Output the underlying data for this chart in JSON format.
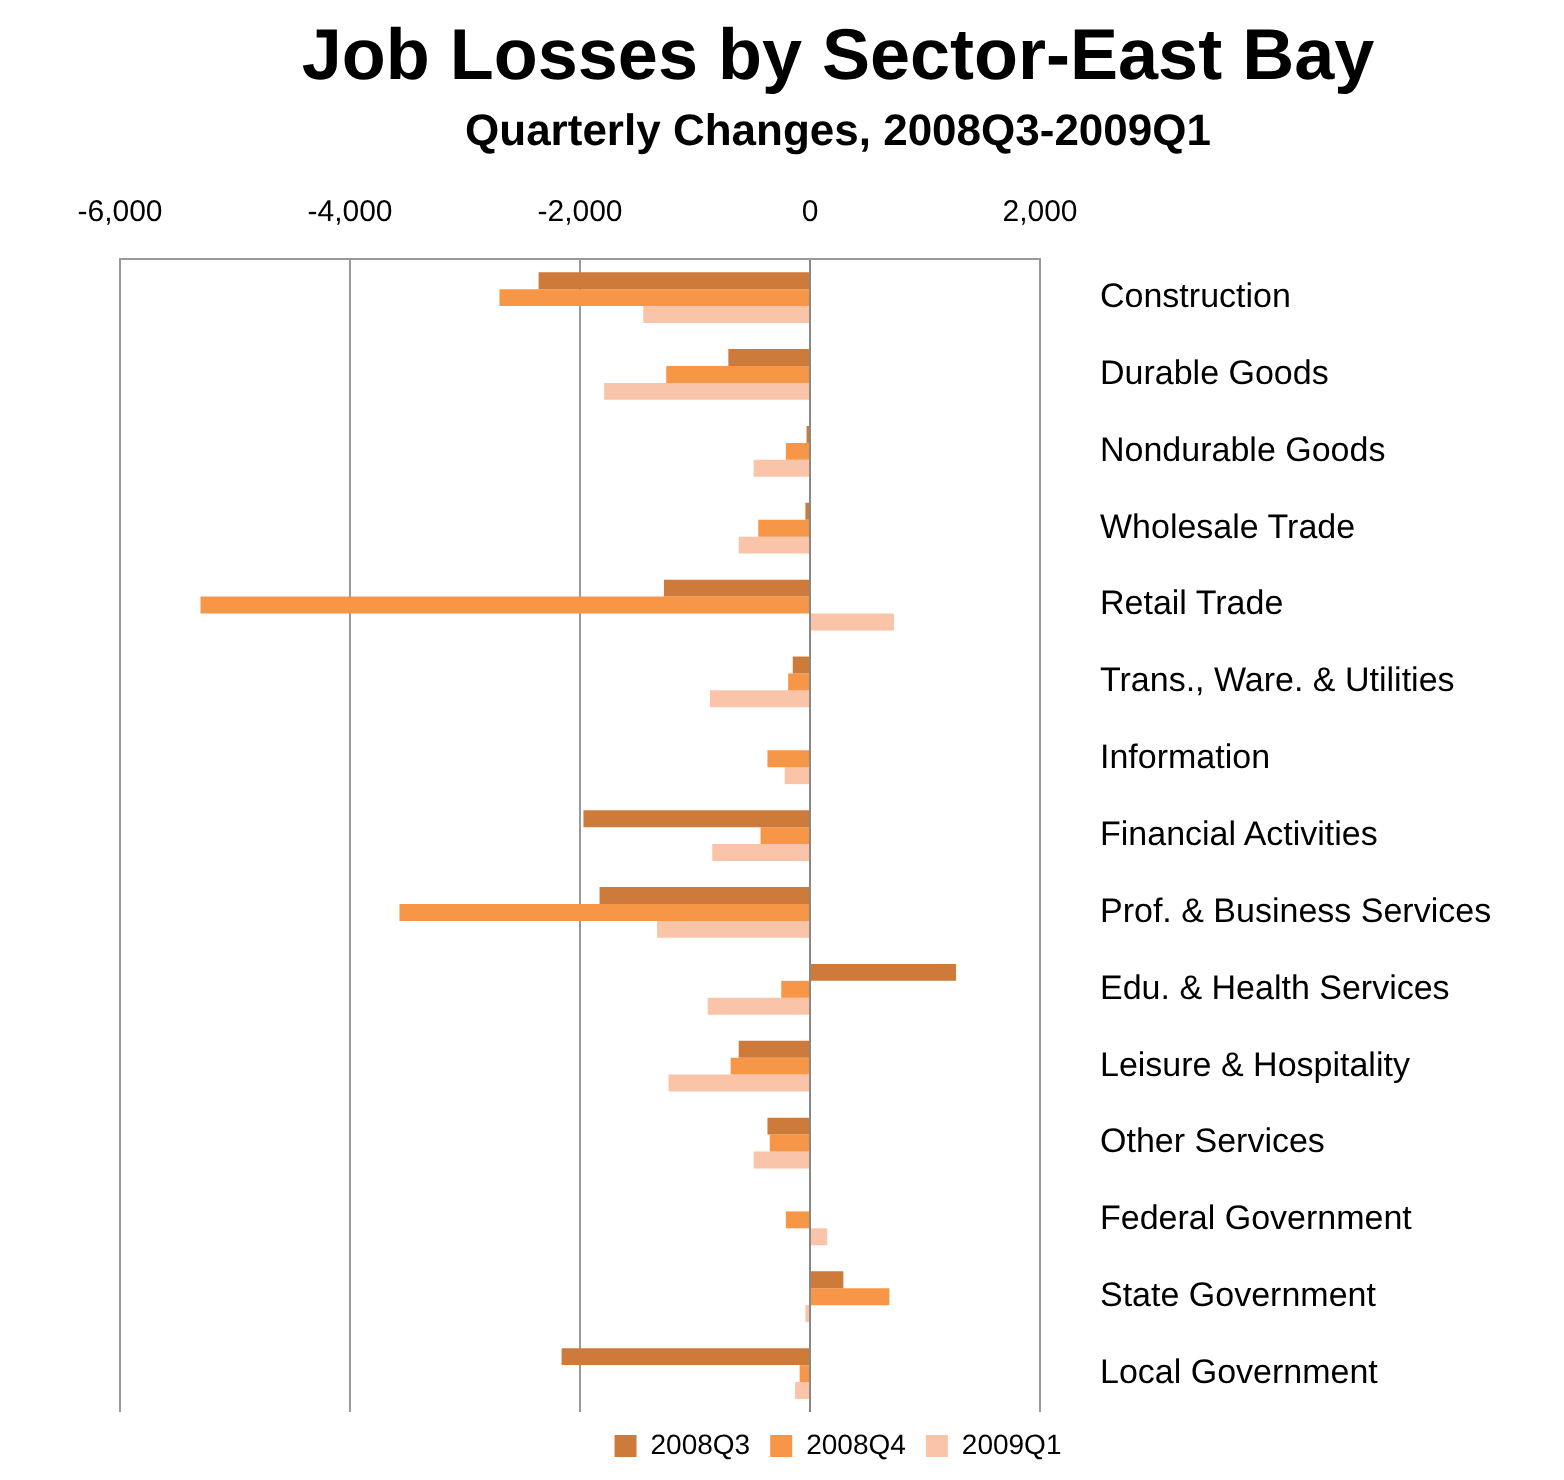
{
  "chart_data": {
    "type": "bar",
    "orientation": "horizontal",
    "title": "Job Losses by Sector-East Bay",
    "subtitle": "Quarterly Changes, 2008Q3-2009Q1",
    "categories": [
      "Construction",
      "Durable Goods",
      "Nondurable Goods",
      "Wholesale Trade",
      "Retail Trade",
      "Trans., Ware. & Utilities",
      "Information",
      "Financial Activities",
      "Prof. & Business Services",
      "Edu. & Health Services",
      "Leisure & Hospitality",
      "Other Services",
      "Federal Government",
      "State Government",
      "Local Government"
    ],
    "series": [
      {
        "name": "2008Q3",
        "color": "#cd7a3a",
        "values": [
          -2360,
          -710,
          -30,
          -40,
          -1270,
          -150,
          0,
          -1970,
          -1830,
          1270,
          -620,
          -370,
          0,
          290,
          -2160
        ]
      },
      {
        "name": "2008Q4",
        "color": "#f79646",
        "values": [
          -2700,
          -1250,
          -210,
          -450,
          -5300,
          -190,
          -370,
          -430,
          -3570,
          -250,
          -690,
          -350,
          -210,
          690,
          -90
        ]
      },
      {
        "name": "2009Q1",
        "color": "#fac4a8",
        "values": [
          -1450,
          -1790,
          -490,
          -620,
          730,
          -870,
          -220,
          -850,
          -1330,
          -890,
          -1230,
          -490,
          150,
          -40,
          -130
        ]
      }
    ],
    "xlim": [
      -6000,
      2000
    ],
    "xticks": [
      {
        "value": -6000,
        "label": "-6,000"
      },
      {
        "value": -4000,
        "label": "-4,000"
      },
      {
        "value": -2000,
        "label": "-2,000"
      },
      0,
      {
        "value": 2000,
        "label": "2,000"
      }
    ],
    "grid": "x",
    "legend": "bottom"
  }
}
